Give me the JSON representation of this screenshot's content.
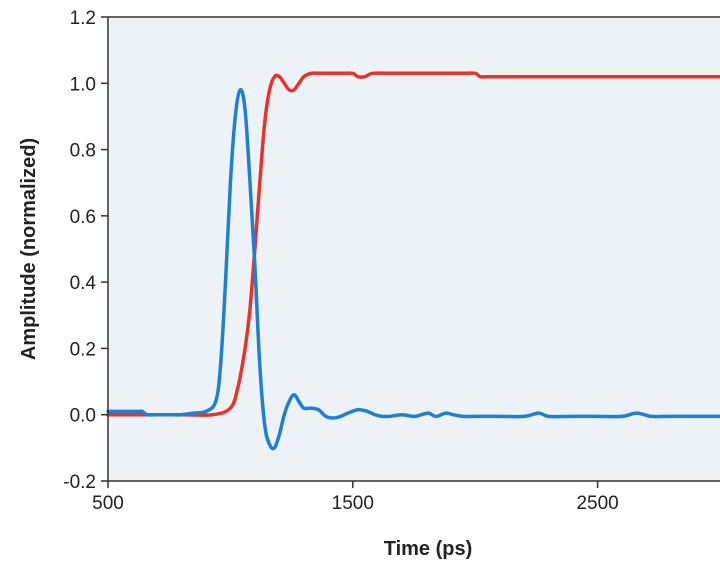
{
  "chart_data": {
    "type": "line",
    "title": "",
    "xlabel": "Time (ps)",
    "ylabel": "Amplitude (normalized)",
    "xlim": [
      500,
      3000
    ],
    "ylim": [
      -0.2,
      1.2
    ],
    "x_ticks": [
      500,
      1500,
      2500
    ],
    "x_tick_labels": [
      "500",
      "1500",
      "2500"
    ],
    "y_ticks": [
      -0.2,
      0.0,
      0.2,
      0.4,
      0.6,
      0.8,
      1.0,
      1.2
    ],
    "y_tick_labels": [
      "-0.2",
      "0.0",
      "0.2",
      "0.4",
      "0.6",
      "0.8",
      "1.0",
      "1.2"
    ],
    "plot_background": "#ecf2f6",
    "grid": false,
    "series": [
      {
        "color": "#e8332b",
        "x": [
          500,
          800,
          930,
          1000,
          1030,
          1060,
          1080,
          1100,
          1120,
          1140,
          1160,
          1180,
          1200,
          1220,
          1240,
          1260,
          1280,
          1300,
          1330,
          1360,
          1400,
          1450,
          1500,
          1520,
          1550,
          1580,
          1650,
          1800,
          1950,
          2000,
          2020,
          2050,
          2200,
          2500,
          2800,
          3000
        ],
        "y": [
          0.0,
          0.0,
          0.0,
          0.02,
          0.08,
          0.2,
          0.32,
          0.5,
          0.7,
          0.88,
          0.98,
          1.02,
          1.02,
          1.0,
          0.98,
          0.98,
          1.0,
          1.02,
          1.03,
          1.03,
          1.03,
          1.03,
          1.03,
          1.02,
          1.02,
          1.03,
          1.03,
          1.03,
          1.03,
          1.03,
          1.02,
          1.02,
          1.02,
          1.02,
          1.02,
          1.02
        ]
      },
      {
        "color": "#1f7fd0",
        "x": [
          500,
          620,
          640,
          660,
          700,
          750,
          800,
          850,
          900,
          940,
          960,
          980,
          1000,
          1020,
          1040,
          1060,
          1080,
          1100,
          1120,
          1140,
          1160,
          1180,
          1200,
          1220,
          1240,
          1260,
          1280,
          1300,
          1330,
          1360,
          1390,
          1420,
          1450,
          1480,
          1520,
          1560,
          1590,
          1620,
          1650,
          1700,
          1750,
          1780,
          1810,
          1840,
          1880,
          1910,
          1950,
          2000,
          2100,
          2200,
          2260,
          2300,
          2400,
          2500,
          2600,
          2660,
          2720,
          2800,
          3000
        ],
        "y": [
          0.01,
          0.01,
          0.01,
          0.0,
          0.0,
          0.0,
          0.0,
          0.005,
          0.01,
          0.04,
          0.15,
          0.4,
          0.7,
          0.9,
          0.98,
          0.92,
          0.7,
          0.45,
          0.15,
          -0.03,
          -0.09,
          -0.1,
          -0.06,
          0.0,
          0.04,
          0.06,
          0.04,
          0.02,
          0.02,
          0.015,
          -0.005,
          -0.01,
          -0.005,
          0.005,
          0.015,
          0.01,
          0.0,
          -0.005,
          -0.005,
          0.0,
          -0.005,
          0.0,
          0.005,
          -0.005,
          0.005,
          0.0,
          -0.005,
          -0.005,
          -0.005,
          -0.005,
          0.005,
          -0.005,
          -0.005,
          -0.005,
          -0.005,
          0.005,
          -0.005,
          -0.005,
          -0.005
        ]
      }
    ]
  }
}
